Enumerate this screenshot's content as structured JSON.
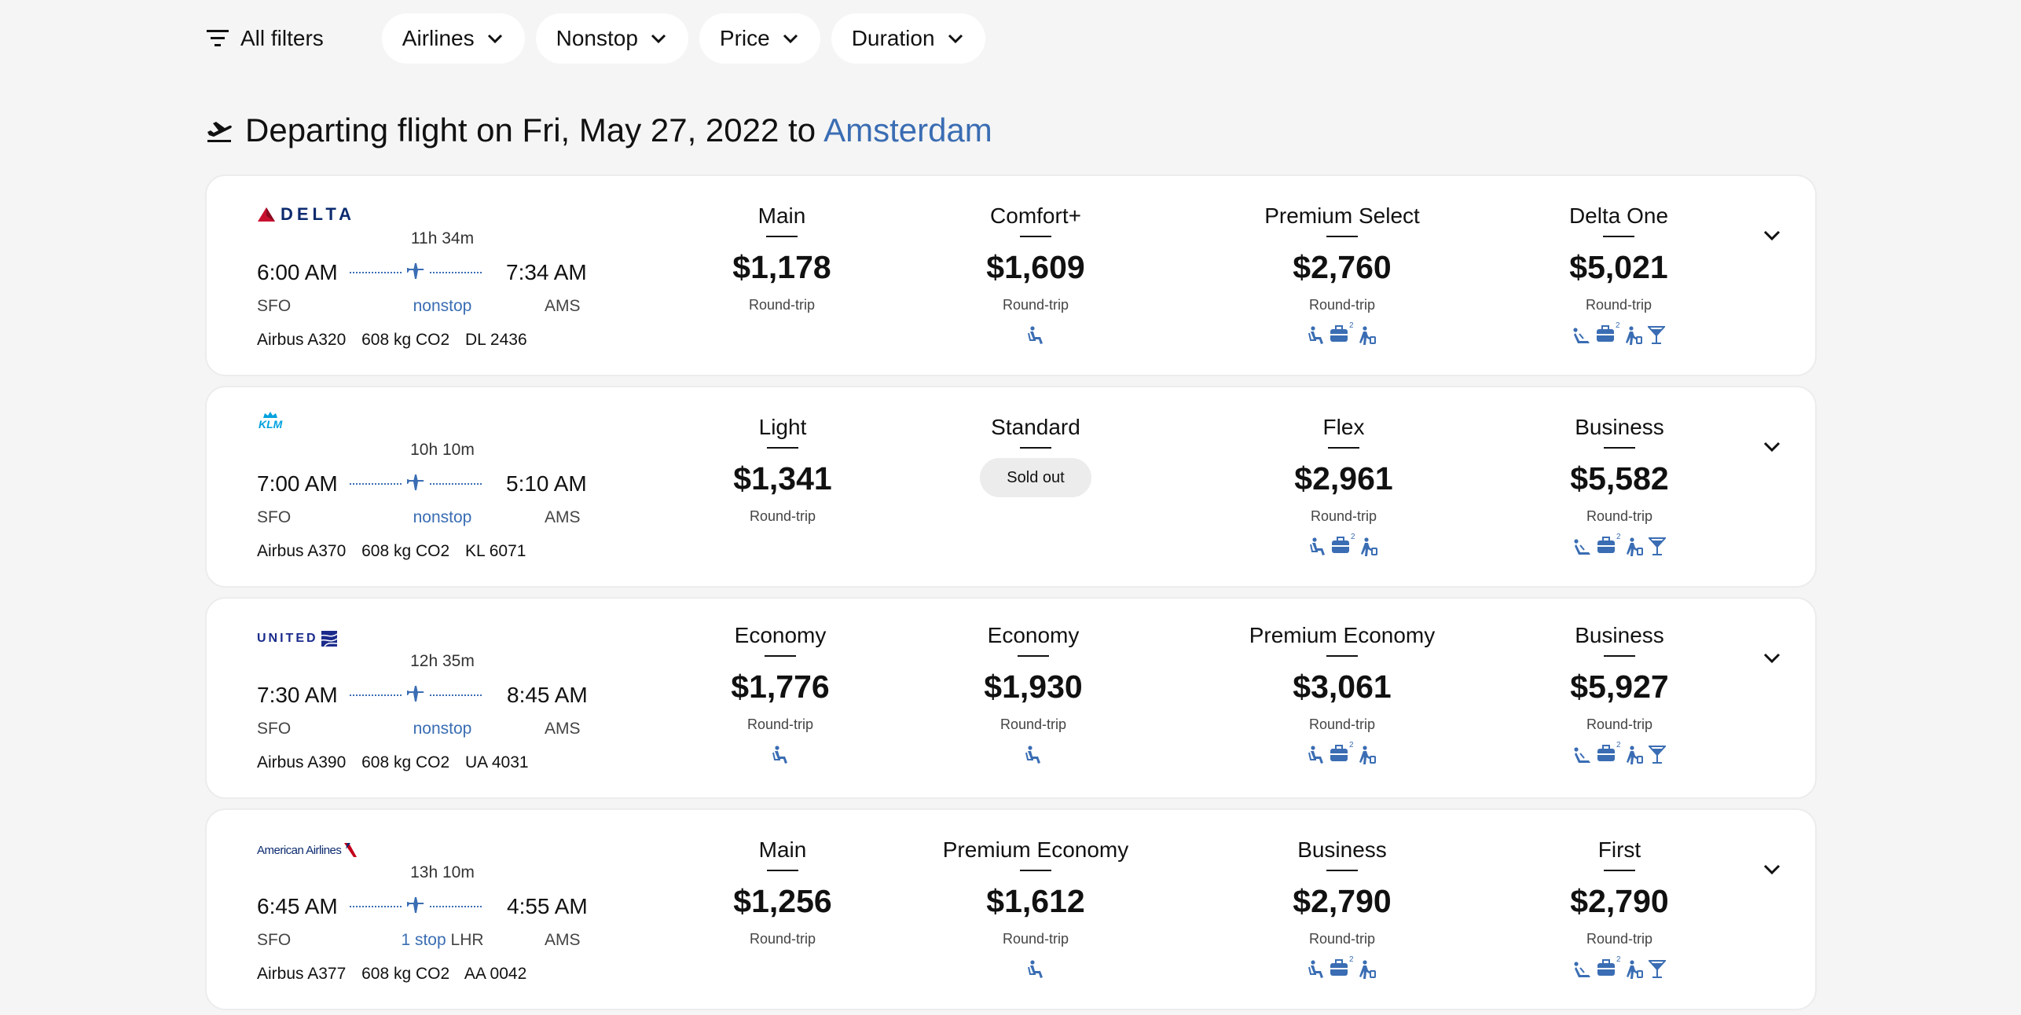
{
  "filters": {
    "all_filters_label": "All filters",
    "chips": [
      "Airlines",
      "Nonstop",
      "Price",
      "Duration"
    ]
  },
  "heading": {
    "prefix": "Departing flight on Fri, May 27, 2022 to",
    "destination": "Amsterdam"
  },
  "colors": {
    "accent": "#3a6db3",
    "delta_red": "#c8102e",
    "delta_blue": "#0b2a6f",
    "klm_blue": "#00a1de",
    "united_blue": "#1a2b8c",
    "aa_red": "#c30019"
  },
  "flights": [
    {
      "airline": "Delta",
      "logo_text": "DELTA",
      "duration": "11h 34m",
      "depart_time": "6:00 AM",
      "arrive_time": "7:34 AM",
      "from": "SFO",
      "to": "AMS",
      "stops": "nonstop",
      "via": "",
      "aircraft": "Airbus A320",
      "co2": "608 kg CO2",
      "flight_no": "DL 2436",
      "fares": [
        {
          "name": "Main",
          "price": "$1,178",
          "sub": "Round-trip",
          "icons": []
        },
        {
          "name": "Comfort+",
          "price": "$1,609",
          "sub": "Round-trip",
          "icons": [
            "seat-icon"
          ]
        },
        {
          "name": "Premium Select",
          "price": "$2,760",
          "sub": "Round-trip",
          "icons": [
            "seat-icon",
            "baggage-icon",
            "priority-boarding-icon"
          ]
        },
        {
          "name": "Delta One",
          "price": "$5,021",
          "sub": "Round-trip",
          "icons": [
            "lie-flat-seat-icon",
            "baggage-icon",
            "priority-boarding-icon",
            "cocktail-icon"
          ]
        }
      ]
    },
    {
      "airline": "KLM",
      "logo_text": "KLM",
      "duration": "10h 10m",
      "depart_time": "7:00 AM",
      "arrive_time": "5:10 AM",
      "from": "SFO",
      "to": "AMS",
      "stops": "nonstop",
      "via": "",
      "aircraft": "Airbus A370",
      "co2": "608 kg CO2",
      "flight_no": "KL 6071",
      "fares": [
        {
          "name": "Light",
          "price": "$1,341",
          "sub": "Round-trip",
          "icons": []
        },
        {
          "name": "Standard",
          "price": "",
          "sub": "",
          "sold_out": "Sold out",
          "icons": []
        },
        {
          "name": "Flex",
          "price": "$2,961",
          "sub": "Round-trip",
          "icons": [
            "seat-icon",
            "baggage-icon",
            "priority-boarding-icon"
          ]
        },
        {
          "name": "Business",
          "price": "$5,582",
          "sub": "Round-trip",
          "icons": [
            "lie-flat-seat-icon",
            "baggage-icon",
            "priority-boarding-icon",
            "cocktail-icon"
          ]
        }
      ]
    },
    {
      "airline": "United",
      "logo_text": "UNITED",
      "duration": "12h 35m",
      "depart_time": "7:30 AM",
      "arrive_time": "8:45 AM",
      "from": "SFO",
      "to": "AMS",
      "stops": "nonstop",
      "via": "",
      "aircraft": "Airbus A390",
      "co2": "608 kg CO2",
      "flight_no": "UA 4031",
      "fares": [
        {
          "name": "Economy",
          "price": "$1,776",
          "sub": "Round-trip",
          "icons": [
            "seat-icon"
          ]
        },
        {
          "name": "Economy",
          "price": "$1,930",
          "sub": "Round-trip",
          "icons": [
            "seat-icon"
          ]
        },
        {
          "name": "Premium Economy",
          "price": "$3,061",
          "sub": "Round-trip",
          "icons": [
            "seat-icon",
            "baggage-icon",
            "priority-boarding-icon"
          ]
        },
        {
          "name": "Business",
          "price": "$5,927",
          "sub": "Round-trip",
          "icons": [
            "lie-flat-seat-icon",
            "baggage-icon",
            "priority-boarding-icon",
            "cocktail-icon"
          ]
        }
      ]
    },
    {
      "airline": "American Airlines",
      "logo_text": "American Airlines",
      "duration": "13h 10m",
      "depart_time": "6:45 AM",
      "arrive_time": "4:55 AM",
      "from": "SFO",
      "to": "AMS",
      "stops": "1 stop",
      "via": "LHR",
      "aircraft": "Airbus A377",
      "co2": "608 kg CO2",
      "flight_no": "AA 0042",
      "fares": [
        {
          "name": "Main",
          "price": "$1,256",
          "sub": "Round-trip",
          "icons": []
        },
        {
          "name": "Premium Economy",
          "price": "$1,612",
          "sub": "Round-trip",
          "icons": [
            "seat-icon"
          ]
        },
        {
          "name": "Business",
          "price": "$2,790",
          "sub": "Round-trip",
          "icons": [
            "seat-icon",
            "baggage-icon",
            "priority-boarding-icon"
          ]
        },
        {
          "name": "First",
          "price": "$2,790",
          "sub": "Round-trip",
          "icons": [
            "lie-flat-seat-icon",
            "baggage-icon",
            "priority-boarding-icon",
            "cocktail-icon"
          ]
        }
      ]
    }
  ]
}
